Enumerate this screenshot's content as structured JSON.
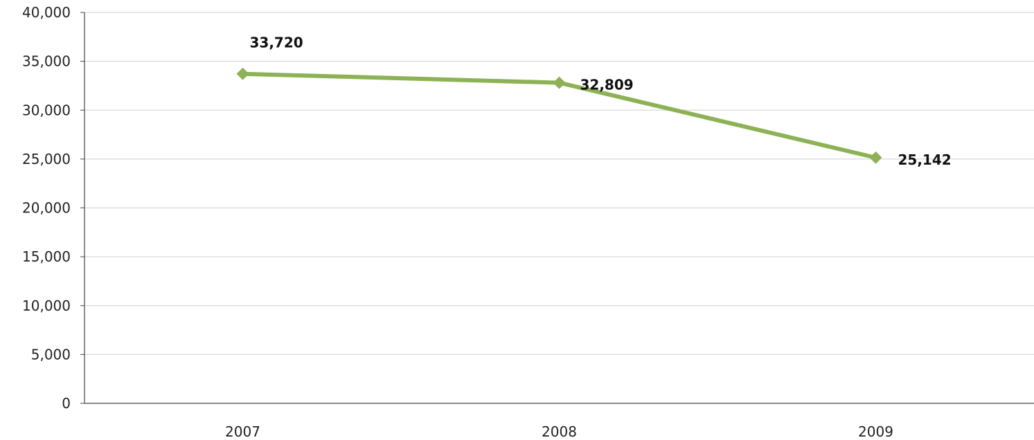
{
  "chart_data": {
    "type": "line",
    "title": "",
    "xlabel": "",
    "ylabel": "",
    "categories": [
      "2007",
      "2008",
      "2009"
    ],
    "series": [
      {
        "values": [
          33720,
          32809,
          25142
        ],
        "data_labels": [
          "33,720",
          "32,809",
          "25,142"
        ],
        "color": "#8DB255",
        "marker": "diamond"
      }
    ],
    "ylim": [
      0,
      40000
    ],
    "yticks": [
      0,
      5000,
      10000,
      15000,
      20000,
      25000,
      30000,
      35000,
      40000
    ],
    "ytick_labels": [
      "0",
      "5,000",
      "10,000",
      "15,000",
      "20,000",
      "25,000",
      "30,000",
      "35,000",
      "40,000"
    ],
    "grid": true,
    "legend": "none"
  }
}
